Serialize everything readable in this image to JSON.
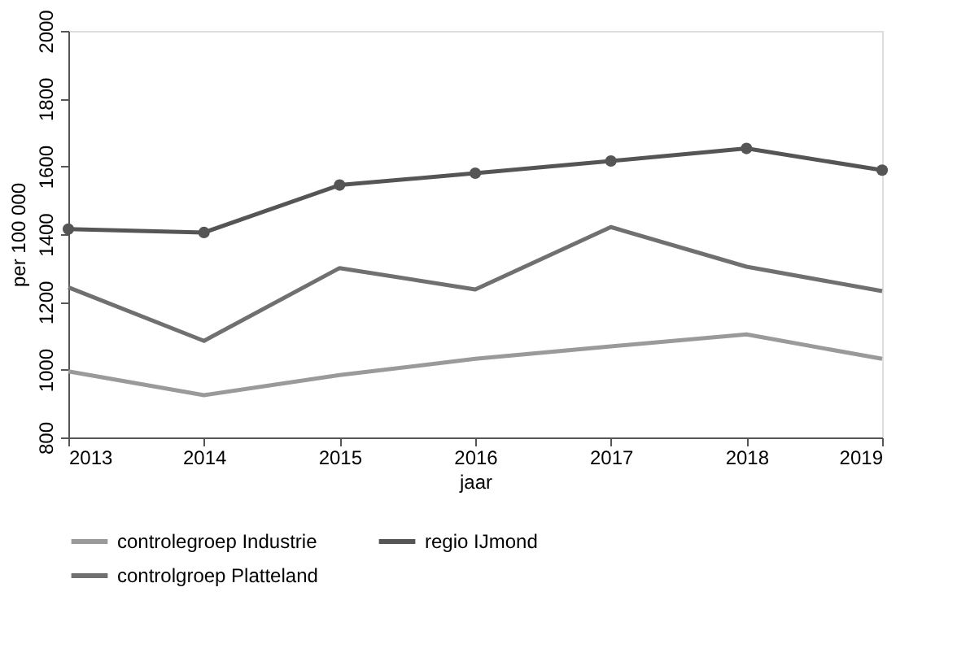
{
  "chart_data": {
    "type": "line",
    "xlabel": "jaar",
    "ylabel": "per 100 000",
    "x": [
      2013,
      2014,
      2015,
      2016,
      2017,
      2018,
      2019
    ],
    "xlim": [
      2013,
      2019
    ],
    "xticks": [
      2013,
      2014,
      2015,
      2016,
      2017,
      2018,
      2019
    ],
    "ylim": [
      800,
      2000
    ],
    "yticks": [
      800,
      1000,
      1200,
      1400,
      1600,
      1800,
      2000
    ],
    "grid": false,
    "legend": "bottom",
    "line_style": "solid",
    "series": [
      {
        "name": "controlegroep Industrie",
        "color": "#9a9a9a",
        "marker": "none",
        "values": [
          995,
          925,
          984,
          1032,
          1069,
          1104,
          1032
        ]
      },
      {
        "name": "regio IJmond",
        "color": "#555555",
        "marker": "circle",
        "values": [
          1415,
          1405,
          1545,
          1580,
          1616,
          1653,
          1589
        ]
      },
      {
        "name": "controlgroep Platteland",
        "color": "#707070",
        "marker": "none",
        "values": [
          1243,
          1085,
          1300,
          1237,
          1421,
          1304,
          1232
        ]
      }
    ]
  }
}
